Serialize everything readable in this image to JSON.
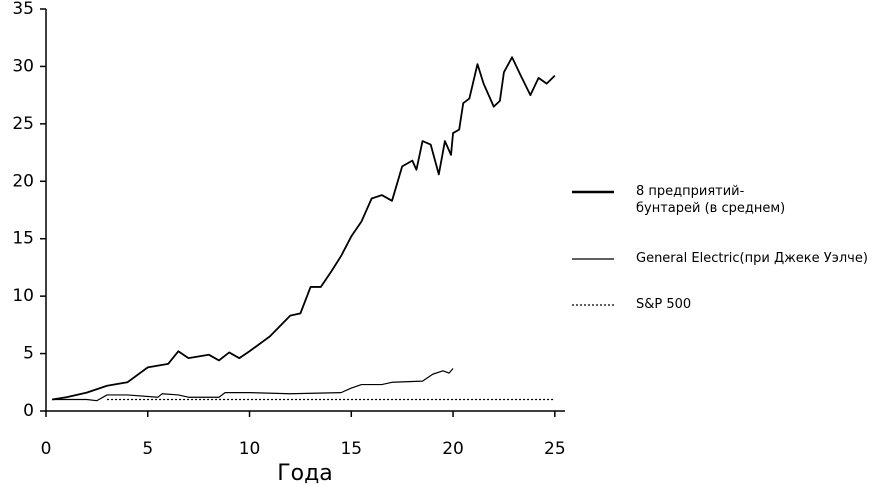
{
  "chart_data": {
    "type": "line",
    "x_label": "Года",
    "xlim": [
      0,
      25.5
    ],
    "xticks": [
      0,
      5,
      10,
      15,
      20,
      25
    ],
    "ylim": [
      0,
      35
    ],
    "yticks": [
      0,
      5,
      10,
      15,
      20,
      25,
      30,
      35
    ],
    "series": [
      {
        "name": "8 предприятий-бунтарей (в среднем)",
        "color": "#000000",
        "style": "thick",
        "x": [
          0.3,
          1,
          2,
          3,
          4,
          5,
          6,
          6.5,
          7,
          8,
          8.5,
          9,
          9.5,
          10,
          11,
          12,
          12.5,
          13,
          13.5,
          14,
          14.5,
          15,
          15.5,
          16,
          16.5,
          17,
          17.5,
          18,
          18.2,
          18.5,
          18.9,
          19.3,
          19.6,
          19.9,
          20,
          20.3,
          20.5,
          20.8,
          21.2,
          21.5,
          22,
          22.3,
          22.5,
          22.9,
          23.3,
          23.8,
          24.2,
          24.6,
          25
        ],
        "values": [
          1,
          1.2,
          1.6,
          2.2,
          2.5,
          3.8,
          4.1,
          5.2,
          4.6,
          4.9,
          4.4,
          5.1,
          4.6,
          5.2,
          6.5,
          8.3,
          8.5,
          10.8,
          10.8,
          12.1,
          13.5,
          15.2,
          16.5,
          18.5,
          18.8,
          18.3,
          21.3,
          21.8,
          21,
          23.5,
          23.2,
          20.6,
          23.5,
          22.3,
          24.2,
          24.5,
          26.8,
          27.2,
          30.2,
          28.5,
          26.5,
          27,
          29.5,
          30.8,
          29.3,
          27.5,
          29,
          28.5,
          29.2
        ]
      },
      {
        "name": "General Electric(при Джеке Уэлче)",
        "color": "#000000",
        "style": "solid",
        "x": [
          0.3,
          2,
          2.5,
          3,
          4,
          5.5,
          5.7,
          6.5,
          7,
          8.5,
          8.8,
          10,
          12,
          14.5,
          15,
          15.5,
          16.5,
          17,
          18.5,
          19,
          19.5,
          19.8,
          20
        ],
        "values": [
          1,
          1,
          0.9,
          1.4,
          1.4,
          1.2,
          1.5,
          1.4,
          1.2,
          1.2,
          1.6,
          1.6,
          1.5,
          1.6,
          2,
          2.3,
          2.3,
          2.5,
          2.6,
          3.2,
          3.5,
          3.3,
          3.7
        ]
      },
      {
        "name": "S&P 500",
        "color": "#000000",
        "style": "dotted",
        "x": [
          3,
          25
        ],
        "values": [
          1,
          1
        ]
      }
    ]
  }
}
